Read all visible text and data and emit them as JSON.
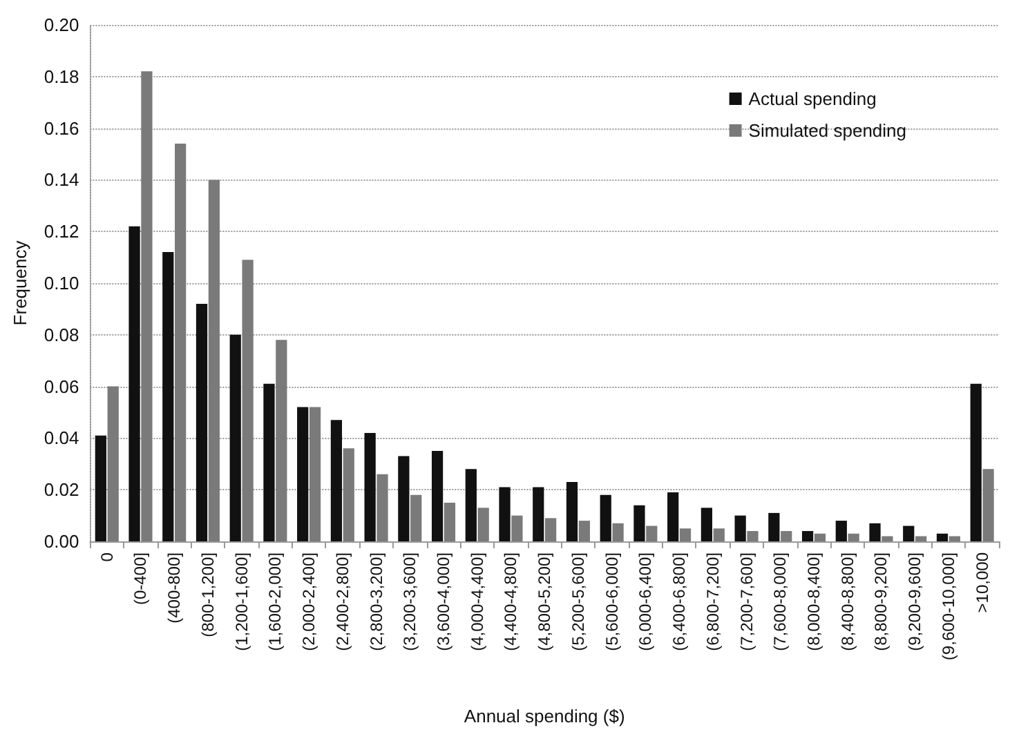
{
  "chart_data": {
    "type": "bar",
    "xlabel": "Annual spending ($)",
    "ylabel": "Frequency",
    "categories": [
      "0",
      "(0-400]",
      "(400-800]",
      "(800-1,200]",
      "(1,200-1,600]",
      "(1,600-2,000]",
      "(2,000-2,400]",
      "(2,400-2,800]",
      "(2,800-3,200]",
      "(3,200-3,600]",
      "(3,600-4,000]",
      "(4,000-4,400]",
      "(4,400-4,800]",
      "(4,800-5,200]",
      "(5,200-5,600]",
      "(5,600-6,000]",
      "(6,000-6,400]",
      "(6,400-6,800]",
      "(6,800-7,200]",
      "(7,200-7,600]",
      "(7,600-8,000]",
      "(8,000-8,400]",
      "(8,400-8,800]",
      "(8,800-9,200]",
      "(9,200-9,600]",
      "(9,600-10,000]",
      ">10,000"
    ],
    "series": [
      {
        "name": "Actual spending",
        "color": "#111111",
        "values": [
          0.041,
          0.122,
          0.112,
          0.092,
          0.08,
          0.061,
          0.052,
          0.047,
          0.042,
          0.033,
          0.035,
          0.028,
          0.021,
          0.021,
          0.023,
          0.018,
          0.014,
          0.019,
          0.013,
          0.01,
          0.011,
          0.004,
          0.008,
          0.007,
          0.006,
          0.003,
          0.061
        ]
      },
      {
        "name": "Simulated spending",
        "color": "#7a7a7a",
        "values": [
          0.06,
          0.182,
          0.154,
          0.14,
          0.109,
          0.078,
          0.052,
          0.036,
          0.026,
          0.018,
          0.015,
          0.013,
          0.01,
          0.009,
          0.008,
          0.007,
          0.006,
          0.005,
          0.005,
          0.004,
          0.004,
          0.003,
          0.003,
          0.002,
          0.002,
          0.002,
          0.028
        ]
      }
    ],
    "ylim": [
      0,
      0.2
    ],
    "yticks": [
      {
        "value": 0,
        "label": "0.00"
      },
      {
        "value": 0.02,
        "label": "0.02"
      },
      {
        "value": 0.04,
        "label": "0.04"
      },
      {
        "value": 0.06,
        "label": "0.06"
      },
      {
        "value": 0.08,
        "label": "0.08"
      },
      {
        "value": 0.1,
        "label": "0.10"
      },
      {
        "value": 0.12,
        "label": "0.12"
      },
      {
        "value": 0.14,
        "label": "0.14"
      },
      {
        "value": 0.16,
        "label": "0.16"
      },
      {
        "value": 0.18,
        "label": "0.18"
      },
      {
        "value": 0.2,
        "label": "0.20"
      }
    ],
    "grid": "y",
    "legend": "top right"
  }
}
